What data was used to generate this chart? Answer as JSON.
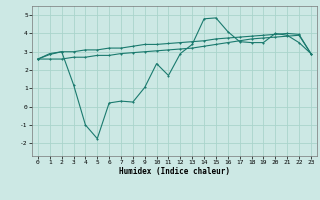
{
  "title": "",
  "xlabel": "Humidex (Indice chaleur)",
  "ylabel": "",
  "background_color": "#cce8e4",
  "grid_color": "#aad4cc",
  "line_color": "#1a7a6e",
  "xlim": [
    -0.5,
    23.5
  ],
  "ylim": [
    -2.7,
    5.5
  ],
  "yticks": [
    -2,
    -1,
    0,
    1,
    2,
    3,
    4,
    5
  ],
  "xticks": [
    0,
    1,
    2,
    3,
    4,
    5,
    6,
    7,
    8,
    9,
    10,
    11,
    12,
    13,
    14,
    15,
    16,
    17,
    18,
    19,
    20,
    21,
    22,
    23
  ],
  "line1_y": [
    2.6,
    2.9,
    3.0,
    3.0,
    3.1,
    3.1,
    3.2,
    3.2,
    3.3,
    3.4,
    3.4,
    3.45,
    3.5,
    3.55,
    3.6,
    3.7,
    3.75,
    3.8,
    3.85,
    3.9,
    3.95,
    4.0,
    3.95,
    2.9
  ],
  "line2_y": [
    2.6,
    2.85,
    3.0,
    1.2,
    -1.0,
    -1.75,
    0.2,
    0.3,
    0.25,
    1.05,
    2.35,
    1.7,
    2.9,
    3.4,
    4.8,
    4.85,
    4.1,
    3.55,
    3.5,
    3.5,
    4.0,
    3.9,
    3.5,
    2.9
  ],
  "line3_y": [
    2.6,
    2.6,
    2.6,
    2.7,
    2.7,
    2.8,
    2.8,
    2.9,
    2.95,
    3.0,
    3.05,
    3.1,
    3.15,
    3.2,
    3.3,
    3.4,
    3.5,
    3.6,
    3.7,
    3.75,
    3.8,
    3.85,
    3.9,
    2.9
  ],
  "linewidth": 0.8,
  "markersize": 2.0,
  "tick_fontsize": 4.5,
  "xlabel_fontsize": 5.5
}
